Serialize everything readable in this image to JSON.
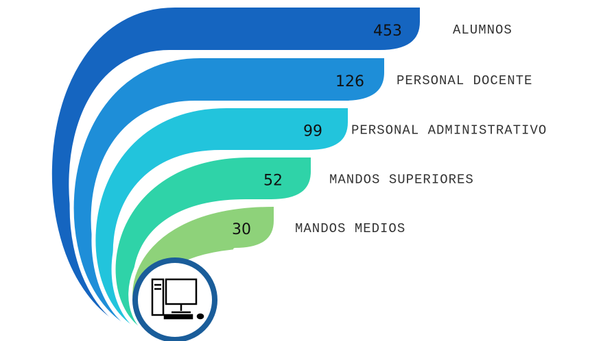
{
  "items": [
    {
      "value": 453,
      "label": "ALUMNOS"
    },
    {
      "value": 126,
      "label": "PERSONAL DOCENTE"
    },
    {
      "value": 99,
      "label": "PERSONAL ADMINISTRATIVO"
    },
    {
      "value": 52,
      "label": "MANDOS SUPERIORES"
    },
    {
      "value": 30,
      "label": "MANDOS MEDIOS"
    }
  ]
}
